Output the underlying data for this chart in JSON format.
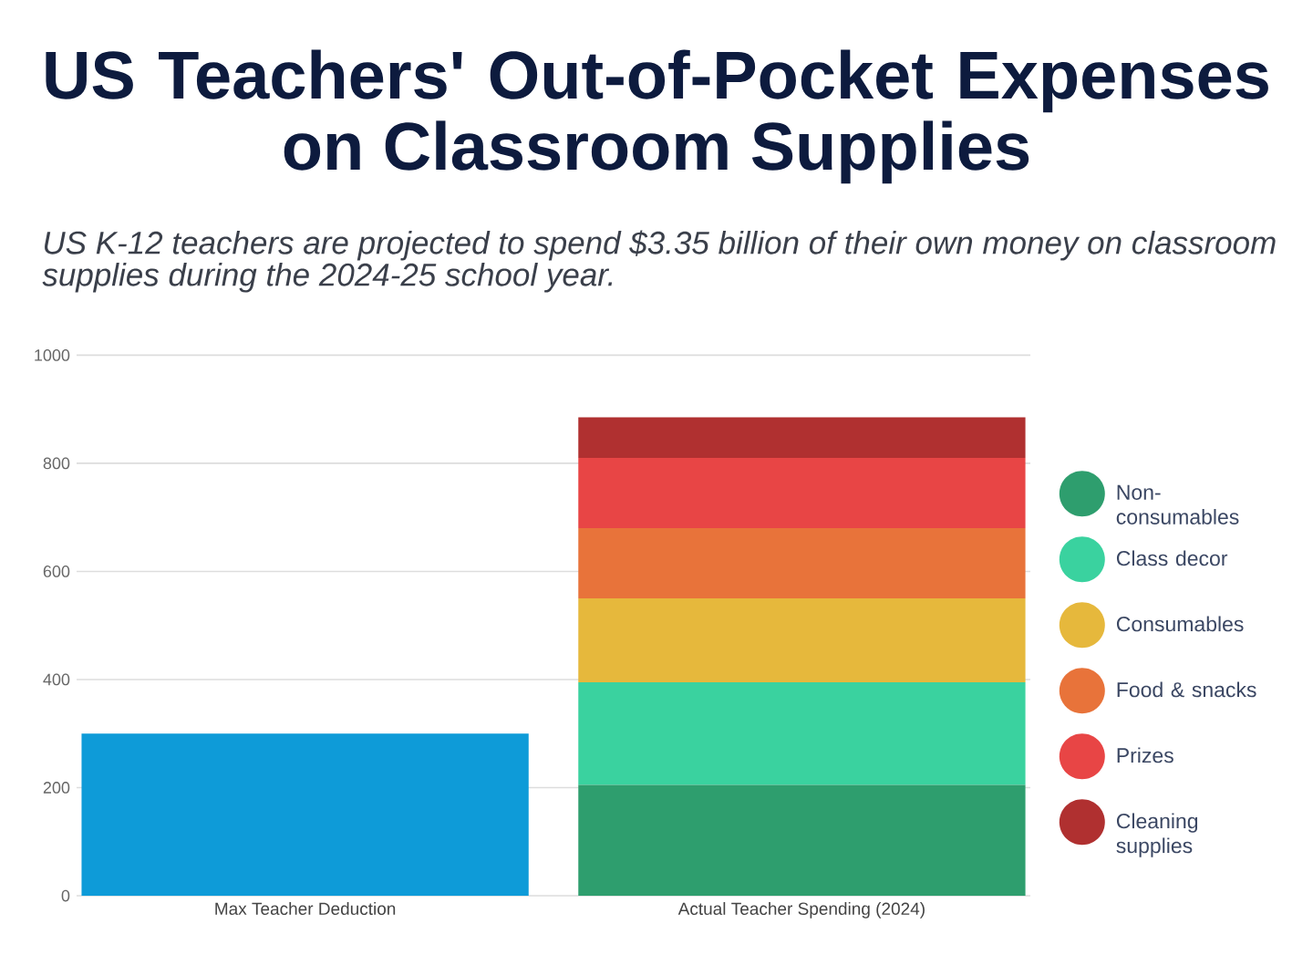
{
  "chart_data": {
    "type": "bar",
    "title": "US Teachers' Out-of-Pocket Expenses on Classroom Supplies",
    "subtitle": "US K-12 teachers are projected to spend $3.35 billion of their own money on classroom supplies during the 2024-25 school year.",
    "categories": [
      "Max Teacher Deduction",
      "Actual Teacher Spending (2024)"
    ],
    "stacked": true,
    "series": [
      {
        "color": "#0e9bd8",
        "values": [
          300,
          null
        ]
      },
      {
        "name": "Non-consumables",
        "color": "#2e9e6e",
        "values": [
          null,
          205
        ]
      },
      {
        "name": "Class decor",
        "color": "#3ad29f",
        "values": [
          null,
          190
        ]
      },
      {
        "name": "Consumables",
        "color": "#e6b83c",
        "values": [
          null,
          155
        ]
      },
      {
        "name": "Food & snacks",
        "color": "#e8733a",
        "values": [
          null,
          130
        ]
      },
      {
        "name": "Prizes",
        "color": "#e84545",
        "values": [
          null,
          130
        ]
      },
      {
        "name": "Cleaning supplies",
        "color": "#b03030",
        "values": [
          null,
          75
        ]
      }
    ],
    "ylim": [
      0,
      1000
    ],
    "yticks": [
      0,
      200,
      400,
      600,
      800,
      1000
    ],
    "grid": "y",
    "legend": "right"
  }
}
